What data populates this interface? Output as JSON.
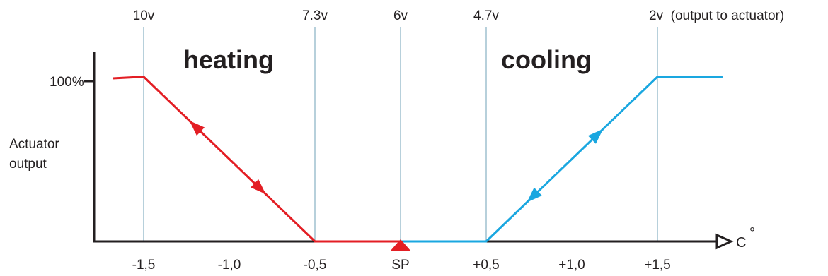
{
  "chart_data": {
    "type": "line",
    "title": "",
    "xlabel": "C°",
    "ylabel": "Actuator output",
    "ylabel_lines": [
      "Actuator",
      "output"
    ],
    "y_tick_label": "100%",
    "ylim": [
      0,
      100
    ],
    "x_unit_label": "C",
    "x_unit_degree": "°",
    "x_ticks": [
      {
        "value": -1.5,
        "label": "-1,5"
      },
      {
        "value": -1.0,
        "label": "-1,0"
      },
      {
        "value": -0.5,
        "label": "-0,5"
      },
      {
        "value": 0,
        "label": "SP"
      },
      {
        "value": 0.5,
        "label": "+0,5"
      },
      {
        "value": 1.0,
        "label": "+1,0"
      },
      {
        "value": 1.5,
        "label": "+1,5"
      }
    ],
    "top_labels": [
      {
        "value": -1.5,
        "label": "10v"
      },
      {
        "value": -0.5,
        "label": "7.3v"
      },
      {
        "value": 0,
        "label": "6v"
      },
      {
        "value": 0.5,
        "label": "4.7v"
      },
      {
        "value": 1.5,
        "label": "2v  (output to actuator)"
      }
    ],
    "gridlines": [
      -1.5,
      -0.5,
      0,
      0.5,
      1.5
    ],
    "regions": [
      {
        "label": "heating",
        "color": "#e31e24"
      },
      {
        "label": "cooling",
        "color": "#1aa7e0"
      }
    ],
    "series": [
      {
        "color": "#e31e24",
        "x": [
          -1.68,
          -1.5,
          -0.5,
          0
        ],
        "y": [
          100,
          101,
          0,
          0
        ]
      },
      {
        "color": "#1aa7e0",
        "x": [
          0,
          0.5,
          1.5,
          1.88
        ],
        "y": [
          0,
          0,
          101,
          101
        ]
      }
    ],
    "arrows": [
      {
        "series": 0,
        "x": -1.2,
        "direction": "up"
      },
      {
        "series": 0,
        "x": -0.82,
        "direction": "down"
      },
      {
        "series": 1,
        "x": 1.15,
        "direction": "up"
      },
      {
        "series": 1,
        "x": 0.77,
        "direction": "down"
      }
    ],
    "setpoint_marker_color": "#e31e24",
    "axis_color": "#231f20",
    "grid_color": "#9fc0cf"
  }
}
